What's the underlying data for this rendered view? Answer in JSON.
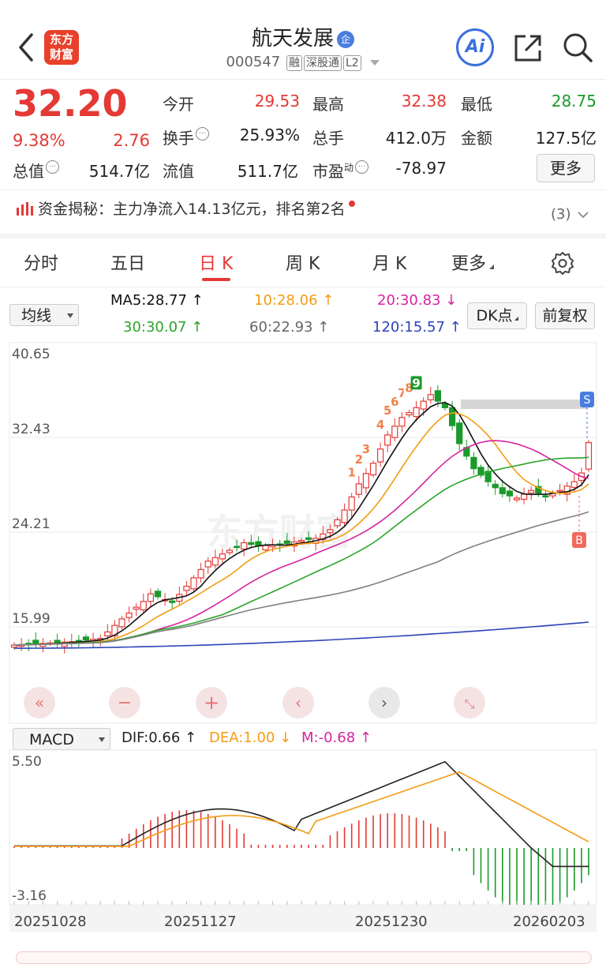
{
  "header": {
    "logo_line1": "东方",
    "logo_line2": "财富",
    "title": "航天发展",
    "title_badge": "企",
    "code": "000547",
    "tags": [
      "融",
      "深股通",
      "L2"
    ],
    "ai_label": "Ai",
    "icons": [
      "back-icon",
      "share-icon",
      "search-icon"
    ]
  },
  "quote": {
    "price": "32.20",
    "change_pct": "9.38%",
    "change": "2.76",
    "rows": [
      {
        "l1": "今开",
        "v1": "29.53",
        "c1": "#e53935",
        "l2": "最高",
        "v2": "32.38",
        "c2": "#e53935",
        "l3": "最低",
        "v3": "28.75",
        "c3": "#1a9a2a"
      },
      {
        "l1": "换手",
        "v1": "25.93%",
        "c1": "#222",
        "l2": "总手",
        "v2": "412.0万",
        "c2": "#222",
        "l3": "金额",
        "v3": "127.5亿",
        "c3": "#222"
      }
    ],
    "total_cap_label": "总值",
    "total_cap": "514.7亿",
    "float_cap_label": "流值",
    "float_cap": "511.7亿",
    "pe_label": "市盈",
    "pe_sup": "动",
    "pe": "-78.97",
    "more_button": "更多"
  },
  "fund_flow": {
    "text": "资金揭秘：主力净流入14.13亿元，排名第2名",
    "count": "(3)"
  },
  "tabs": [
    "分时",
    "五日",
    "日 K",
    "周 K",
    "月 K",
    "更多"
  ],
  "active_tab": "日 K",
  "ma_bar": {
    "selector": "均线",
    "ma5": "MA5:28.77 ↑",
    "ma10": "10:28.06 ↑",
    "ma20": "20:30.83 ↓",
    "ma30": "30:30.07 ↑",
    "ma60": "60:22.93 ↑",
    "ma120": "120:15.57 ↑",
    "dk_button": "DK点",
    "adjust_button": "前复权"
  },
  "kline": {
    "y_labels": [
      "40.65",
      "32.43",
      "24.21",
      "15.99"
    ],
    "watermark": "东方财富",
    "signal_numbers": [
      "1",
      "2",
      "3",
      "4",
      "5",
      "6",
      "7",
      "8",
      "9"
    ],
    "s_marker": "S",
    "b_marker": "B"
  },
  "macd": {
    "selector": "MACD",
    "dif": "DIF:0.66 ↑",
    "dea": "DEA:1.00 ↓",
    "m": "M:-0.68 ↑",
    "y_top": "5.50",
    "y_bottom": "-3.16"
  },
  "dates": [
    "20251028",
    "20251127",
    "20251230",
    "20260203"
  ],
  "colors": {
    "up": "#e53935",
    "down": "#1a9a2a",
    "ma5": "#111111",
    "ma10": "#f39c12",
    "ma20": "#d6249f",
    "ma30": "#2aa52a",
    "ma60": "#808080",
    "ma120": "#2b44b8"
  }
}
